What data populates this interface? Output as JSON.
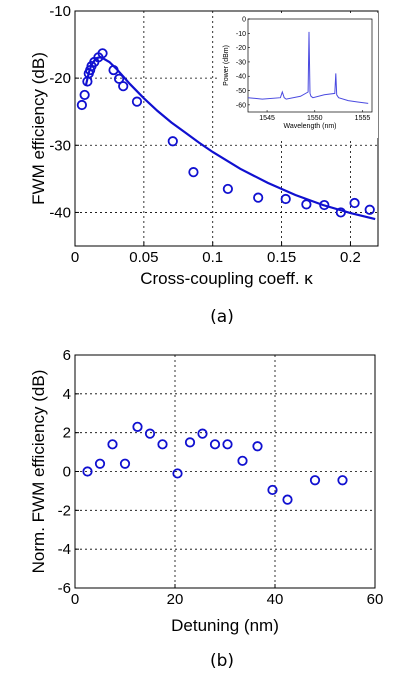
{
  "chart_data": [
    {
      "type": "scatter",
      "panel_label": "(a)",
      "xlabel": "Cross-coupling coeff. κ",
      "ylabel": "FWM efficiency (dB)",
      "xlim": [
        0,
        0.22
      ],
      "ylim": [
        -45,
        -10
      ],
      "xticks": [
        0,
        0.05,
        0.1,
        0.15,
        0.2
      ],
      "xtick_labels": [
        "0",
        "0.05",
        "0.1",
        "0.15",
        "0.2"
      ],
      "yticks": [
        -40,
        -30,
        -20,
        -10
      ],
      "ytick_labels": [
        "-40",
        "-30",
        "-20",
        "-10"
      ],
      "grid": true,
      "color": "#1010d0",
      "series": [
        {
          "style": "markers",
          "x": [
            0.005,
            0.007,
            0.009,
            0.01,
            0.011,
            0.012,
            0.014,
            0.017,
            0.02,
            0.028,
            0.032,
            0.035,
            0.045,
            0.071,
            0.086,
            0.111,
            0.133,
            0.153,
            0.168,
            0.181,
            0.193,
            0.203,
            0.214
          ],
          "y": [
            -24.0,
            -22.5,
            -20.5,
            -19.3,
            -18.8,
            -18.2,
            -17.6,
            -16.9,
            -16.3,
            -18.8,
            -20.1,
            -21.2,
            -23.5,
            -29.4,
            -34.0,
            -36.5,
            -37.8,
            -38.0,
            -38.8,
            -38.9,
            -40.0,
            -38.6,
            -39.6
          ]
        },
        {
          "style": "line",
          "x": [
            0.008,
            0.01,
            0.012,
            0.014,
            0.016,
            0.018,
            0.02,
            0.025,
            0.03,
            0.04,
            0.05,
            0.06,
            0.07,
            0.08,
            0.09,
            0.1,
            0.12,
            0.14,
            0.16,
            0.18,
            0.2,
            0.218
          ],
          "y": [
            -21.0,
            -19.2,
            -18.0,
            -17.4,
            -17.0,
            -16.9,
            -17.0,
            -17.6,
            -18.6,
            -20.9,
            -23.0,
            -24.9,
            -26.6,
            -28.1,
            -29.6,
            -31.0,
            -33.5,
            -35.6,
            -37.4,
            -38.9,
            -40.1,
            -41.0
          ]
        }
      ],
      "inset": {
        "type": "line",
        "xlabel": "Wavelength (nm)",
        "ylabel": "Power (dBm)",
        "xlim": [
          1543,
          1556
        ],
        "ylim": [
          -65,
          0
        ],
        "xticks": [
          1545,
          1550,
          1555
        ],
        "xtick_labels": [
          "1545",
          "1550",
          "1555"
        ],
        "yticks": [
          0,
          -10,
          -20,
          -30,
          -40,
          -50,
          -60
        ],
        "ytick_labels": [
          "0",
          "-10",
          "-20",
          "-30",
          "-40",
          "-50",
          "-60"
        ],
        "color": "#4a4ae0",
        "x": [
          1543.0,
          1544.5,
          1546.4,
          1546.6,
          1546.8,
          1547.0,
          1548.5,
          1549.3,
          1549.4,
          1549.5,
          1549.6,
          1549.8,
          1551.0,
          1552.1,
          1552.2,
          1552.3,
          1552.5,
          1553.5,
          1554.5,
          1555.6
        ],
        "y": [
          -55.0,
          -56.0,
          -55.0,
          -51.0,
          -55.0,
          -56.0,
          -54.0,
          -51.0,
          -9.0,
          -52.0,
          -54.0,
          -55.0,
          -53.0,
          -52.0,
          -38.0,
          -53.0,
          -55.0,
          -57.0,
          -58.0,
          -59.0
        ]
      }
    },
    {
      "type": "scatter",
      "panel_label": "(b)",
      "xlabel": "Detuning (nm)",
      "ylabel": "Norm. FWM efficiency (dB)",
      "xlim": [
        0,
        60
      ],
      "ylim": [
        -6,
        6
      ],
      "xticks": [
        0,
        20,
        40,
        60
      ],
      "xtick_labels": [
        "0",
        "20",
        "40",
        "60"
      ],
      "yticks": [
        -6,
        -4,
        -2,
        0,
        2,
        4,
        6
      ],
      "ytick_labels": [
        "-6",
        "-4",
        "-2",
        "0",
        "2",
        "4",
        "6"
      ],
      "grid": true,
      "color": "#1010d0",
      "series": [
        {
          "style": "markers",
          "x": [
            2.5,
            5,
            7.5,
            10,
            12.5,
            15,
            17.5,
            20.5,
            23,
            25.5,
            28,
            30.5,
            33.5,
            36.5,
            39.5,
            42.5,
            48,
            53.5
          ],
          "y": [
            0.0,
            0.4,
            1.4,
            0.4,
            2.3,
            1.95,
            1.4,
            -0.1,
            1.5,
            1.95,
            1.4,
            1.4,
            0.55,
            1.3,
            -0.95,
            -1.45,
            -0.45,
            -0.45
          ]
        }
      ]
    }
  ]
}
